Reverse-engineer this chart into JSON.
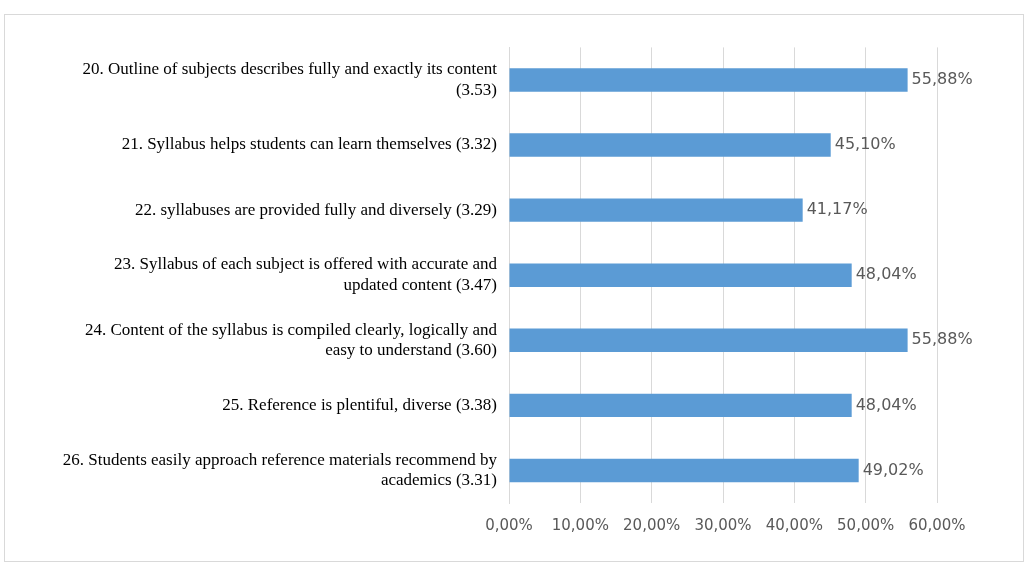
{
  "chart_data": {
    "type": "bar",
    "orientation": "horizontal",
    "categories": [
      "20. Outline of subjects describes fully and exactly its content (3.53)",
      "21. Syllabus helps students can learn themselves (3.32)",
      "22. syllabuses are provided fully and diversely (3.29)",
      "23. Syllabus of each subject is offered with accurate and updated content (3.47)",
      "24. Content of the syllabus is compiled clearly, logically and easy to understand (3.60)",
      "25. Reference is plentiful, diverse (3.38)",
      "26. Students easily approach reference materials recommend by academics (3.31)"
    ],
    "values": [
      55.88,
      45.1,
      41.17,
      48.04,
      55.88,
      48.04,
      49.02
    ],
    "value_labels": [
      "55,88%",
      "45,10%",
      "41,17%",
      "48,04%",
      "55,88%",
      "48,04%",
      "49,02%"
    ],
    "color": "#5b9bd5",
    "xlim": [
      0,
      60
    ],
    "xticks": [
      {
        "value": 0,
        "label": "0,00%"
      },
      {
        "value": 10,
        "label": "10,00%"
      },
      {
        "value": 20,
        "label": "20,00%"
      },
      {
        "value": 30,
        "label": "30,00%"
      },
      {
        "value": 40,
        "label": "40,00%"
      },
      {
        "value": 50,
        "label": "50,00%"
      },
      {
        "value": 60,
        "label": "60,00%"
      }
    ],
    "grid": "x"
  }
}
